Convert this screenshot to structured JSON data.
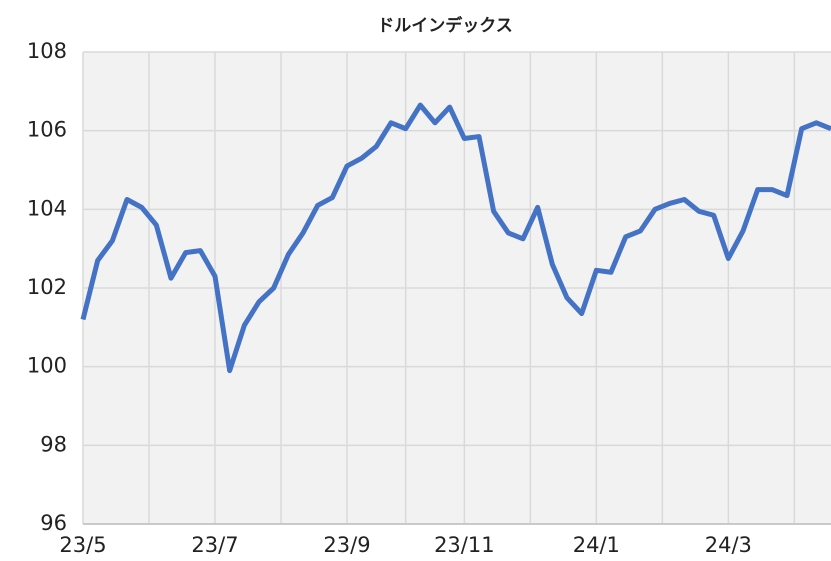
{
  "chart_data": {
    "type": "line",
    "title": "ドルインデックス",
    "categories": [
      "23/5",
      null,
      null,
      null,
      null,
      null,
      null,
      null,
      null,
      "23/7",
      null,
      null,
      null,
      null,
      null,
      null,
      null,
      null,
      "23/9",
      null,
      null,
      null,
      null,
      null,
      null,
      null,
      "23/11",
      null,
      null,
      null,
      null,
      null,
      null,
      null,
      null,
      "24/1",
      null,
      null,
      null,
      null,
      null,
      null,
      null,
      null,
      "24/3",
      null,
      null,
      null,
      null,
      null,
      null,
      null
    ],
    "series": [
      {
        "name": "ドルインデックス",
        "color": "#4472c4",
        "values": [
          101.2,
          102.7,
          103.2,
          104.25,
          104.05,
          103.6,
          102.25,
          102.9,
          102.95,
          102.3,
          99.9,
          101.05,
          101.65,
          102.0,
          102.85,
          103.4,
          104.1,
          104.3,
          105.1,
          105.3,
          105.6,
          106.2,
          106.05,
          106.65,
          106.2,
          106.6,
          105.8,
          105.85,
          103.95,
          103.4,
          103.25,
          104.05,
          102.6,
          101.75,
          101.35,
          102.45,
          102.4,
          103.3,
          103.45,
          104.0,
          104.15,
          104.25,
          103.95,
          103.85,
          102.75,
          103.45,
          104.5,
          104.5,
          104.35,
          106.05,
          106.2,
          106.05
        ]
      }
    ],
    "ylim": [
      96,
      108
    ],
    "yticks": [
      96,
      98,
      100,
      102,
      104,
      106,
      108
    ],
    "grid": true
  }
}
